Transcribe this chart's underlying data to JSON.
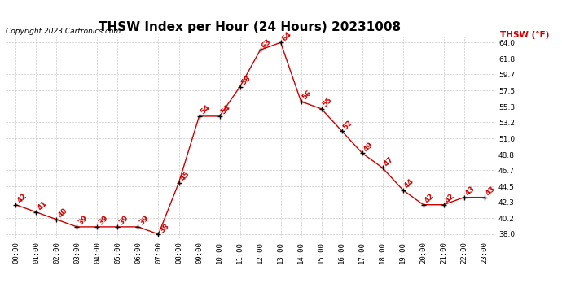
{
  "title": "THSW Index per Hour (24 Hours) 20231008",
  "copyright": "Copyright 2023 Cartronics.com",
  "legend_label": "THSW (°F)",
  "hours": [
    0,
    1,
    2,
    3,
    4,
    5,
    6,
    7,
    8,
    9,
    10,
    11,
    12,
    13,
    14,
    15,
    16,
    17,
    18,
    19,
    20,
    21,
    22,
    23
  ],
  "values": [
    42,
    41,
    40,
    39,
    39,
    39,
    39,
    38,
    45,
    54,
    54,
    58,
    63,
    64,
    56,
    55,
    52,
    49,
    47,
    44,
    42,
    42,
    43,
    43
  ],
  "ytick_labels": [
    "38.0",
    "40.2",
    "42.3",
    "44.5",
    "46.7",
    "48.8",
    "51.0",
    "53.2",
    "55.3",
    "57.5",
    "59.7",
    "61.8",
    "64.0"
  ],
  "ytick_values": [
    38.0,
    40.2,
    42.3,
    44.5,
    46.7,
    48.8,
    51.0,
    53.2,
    55.3,
    57.5,
    59.7,
    61.8,
    64.0
  ],
  "ymin": 37.5,
  "ymax": 64.8,
  "line_color": "#cc0000",
  "marker_color": "#000000",
  "label_color": "#cc0000",
  "title_color": "#000000",
  "copyright_color": "#000000",
  "legend_color": "#cc0000",
  "background_color": "#ffffff",
  "grid_color": "#cccccc",
  "title_fontsize": 11,
  "tick_fontsize": 6.5,
  "label_fontsize": 6.5,
  "copyright_fontsize": 6.5,
  "legend_fontsize": 7.5
}
